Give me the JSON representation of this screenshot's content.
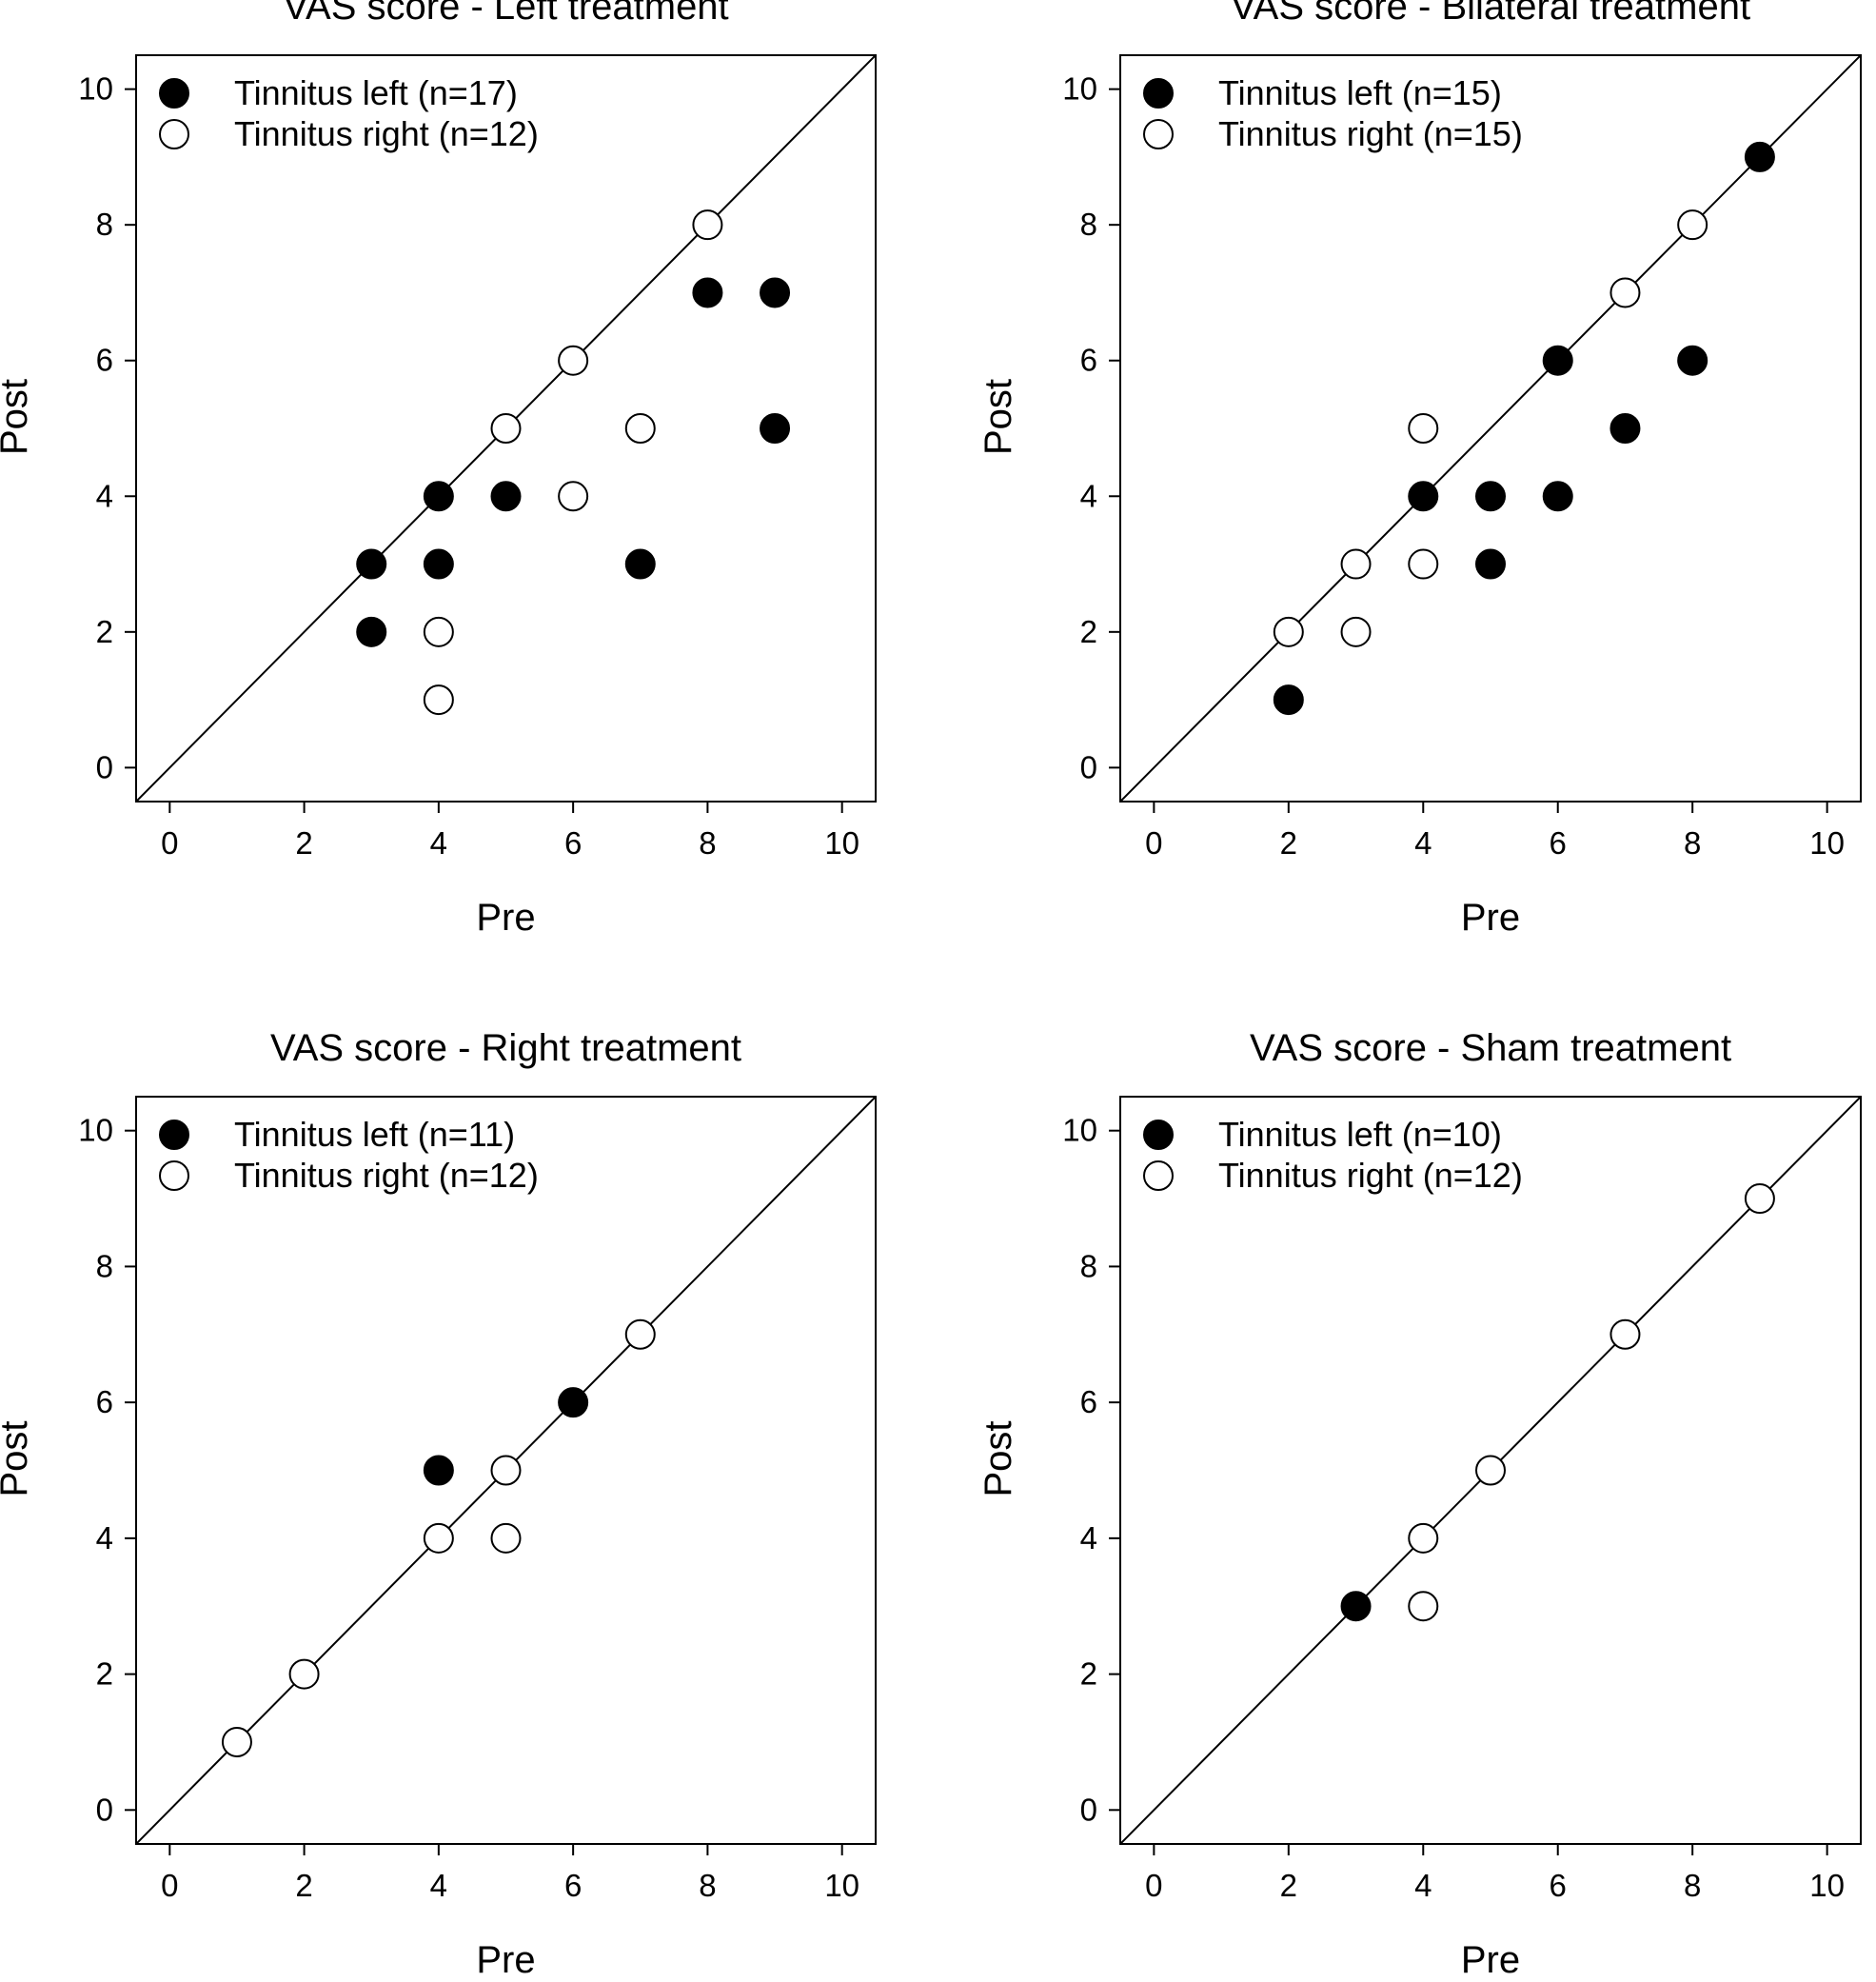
{
  "chart_data": [
    {
      "type": "scatter",
      "title": "VAS score - Left treatment",
      "xlabel": "Pre",
      "ylabel": "Post",
      "xlim": [
        -0.5,
        10.5
      ],
      "ylim": [
        -0.5,
        10.5
      ],
      "xticks": [
        "0",
        "2",
        "4",
        "6",
        "8",
        "10"
      ],
      "yticks": [
        "0",
        "2",
        "4",
        "6",
        "8",
        "10"
      ],
      "identity_line": true,
      "legend_position": "top-left",
      "series": [
        {
          "name": "Tinnitus left (n=17)",
          "marker": "filled",
          "points": [
            [
              3,
              3
            ],
            [
              3,
              2
            ],
            [
              4,
              4
            ],
            [
              4,
              3
            ],
            [
              5,
              4
            ],
            [
              7,
              3
            ],
            [
              8,
              7
            ],
            [
              9,
              7
            ],
            [
              9,
              5
            ]
          ]
        },
        {
          "name": "Tinnitus right (n=12)",
          "marker": "open",
          "points": [
            [
              4,
              2
            ],
            [
              4,
              1
            ],
            [
              5,
              5
            ],
            [
              6,
              6
            ],
            [
              6,
              4
            ],
            [
              7,
              5
            ],
            [
              8,
              8
            ]
          ]
        }
      ]
    },
    {
      "type": "scatter",
      "title": "VAS score - Bilateral treatment",
      "xlabel": "Pre",
      "ylabel": "Post",
      "xlim": [
        -0.5,
        10.5
      ],
      "ylim": [
        -0.5,
        10.5
      ],
      "xticks": [
        "0",
        "2",
        "4",
        "6",
        "8",
        "10"
      ],
      "yticks": [
        "0",
        "2",
        "4",
        "6",
        "8",
        "10"
      ],
      "identity_line": true,
      "legend_position": "top-left",
      "series": [
        {
          "name": "Tinnitus left (n=15)",
          "marker": "filled",
          "points": [
            [
              2,
              1
            ],
            [
              4,
              4
            ],
            [
              5,
              4
            ],
            [
              5,
              3
            ],
            [
              6,
              6
            ],
            [
              6,
              4
            ],
            [
              7,
              5
            ],
            [
              8,
              6
            ],
            [
              9,
              9
            ]
          ]
        },
        {
          "name": "Tinnitus right (n=15)",
          "marker": "open",
          "points": [
            [
              2,
              2
            ],
            [
              3,
              3
            ],
            [
              3,
              2
            ],
            [
              4,
              5
            ],
            [
              4,
              3
            ],
            [
              7,
              7
            ],
            [
              8,
              8
            ]
          ]
        }
      ]
    },
    {
      "type": "scatter",
      "title": "VAS score - Right treatment",
      "xlabel": "Pre",
      "ylabel": "Post",
      "xlim": [
        -0.5,
        10.5
      ],
      "ylim": [
        -0.5,
        10.5
      ],
      "xticks": [
        "0",
        "2",
        "4",
        "6",
        "8",
        "10"
      ],
      "yticks": [
        "0",
        "2",
        "4",
        "6",
        "8",
        "10"
      ],
      "identity_line": true,
      "legend_position": "top-left",
      "series": [
        {
          "name": "Tinnitus left (n=11)",
          "marker": "filled",
          "points": [
            [
              4,
              5
            ],
            [
              6,
              6
            ]
          ]
        },
        {
          "name": "Tinnitus right (n=12)",
          "marker": "open",
          "points": [
            [
              1,
              1
            ],
            [
              2,
              2
            ],
            [
              4,
              4
            ],
            [
              5,
              5
            ],
            [
              5,
              4
            ],
            [
              7,
              7
            ]
          ]
        }
      ]
    },
    {
      "type": "scatter",
      "title": "VAS score - Sham treatment",
      "xlabel": "Pre",
      "ylabel": "Post",
      "xlim": [
        -0.5,
        10.5
      ],
      "ylim": [
        -0.5,
        10.5
      ],
      "xticks": [
        "0",
        "2",
        "4",
        "6",
        "8",
        "10"
      ],
      "yticks": [
        "0",
        "2",
        "4",
        "6",
        "8",
        "10"
      ],
      "identity_line": true,
      "legend_position": "top-left",
      "series": [
        {
          "name": "Tinnitus left (n=10)",
          "marker": "filled",
          "points": [
            [
              3,
              3
            ]
          ]
        },
        {
          "name": "Tinnitus right (n=12)",
          "marker": "open",
          "points": [
            [
              4,
              4
            ],
            [
              4,
              3
            ],
            [
              5,
              5
            ],
            [
              7,
              7
            ],
            [
              9,
              9
            ]
          ]
        }
      ]
    }
  ],
  "colors": {
    "ink": "#000000",
    "open_marker_fill": "#ffffff"
  }
}
